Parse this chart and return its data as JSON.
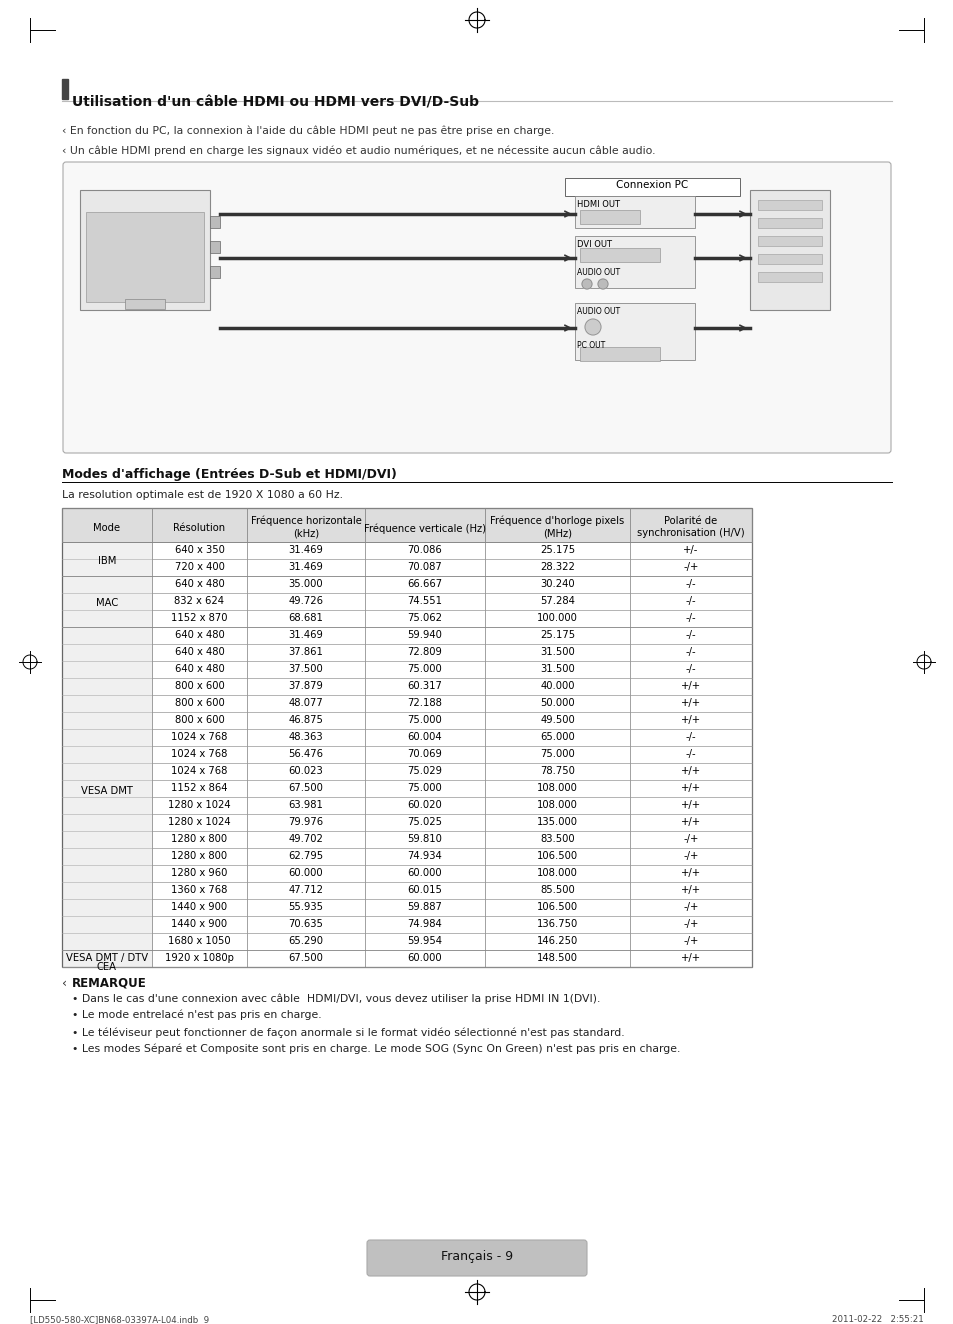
{
  "title": "Utilisation d'un câble HDMI ou HDMI vers DVI/D-Sub",
  "note1": "‹ En fonction du PC, la connexion à l'aide du câble HDMI peut ne pas être prise en charge.",
  "note2": "‹ Un câble HDMI prend en charge les signaux vidéo et audio numériques, et ne nécessite aucun câble audio.",
  "section_title": "Modes d'affichage (Entrées D-Sub et HDMI/DVI)",
  "resolution_note": "La resolution optimale est de 1920 X 1080 a 60 Hz.",
  "table_headers": [
    "Mode",
    "Résolution",
    "Fréquence horizontale\n(kHz)",
    "Fréquence verticale (Hz)",
    "Fréquence d'horloge pixels\n(MHz)",
    "Polarité de\nsynchronisation (H/V)"
  ],
  "table_data": [
    [
      "IBM",
      "640 x 350",
      "31.469",
      "70.086",
      "25.175",
      "+/-"
    ],
    [
      "IBM",
      "720 x 400",
      "31.469",
      "70.087",
      "28.322",
      "-/+"
    ],
    [
      "MAC",
      "640 x 480",
      "35.000",
      "66.667",
      "30.240",
      "-/-"
    ],
    [
      "MAC",
      "832 x 624",
      "49.726",
      "74.551",
      "57.284",
      "-/-"
    ],
    [
      "MAC",
      "1152 x 870",
      "68.681",
      "75.062",
      "100.000",
      "-/-"
    ],
    [
      "VESA DMT",
      "640 x 480",
      "31.469",
      "59.940",
      "25.175",
      "-/-"
    ],
    [
      "VESA DMT",
      "640 x 480",
      "37.861",
      "72.809",
      "31.500",
      "-/-"
    ],
    [
      "VESA DMT",
      "640 x 480",
      "37.500",
      "75.000",
      "31.500",
      "-/-"
    ],
    [
      "VESA DMT",
      "800 x 600",
      "37.879",
      "60.317",
      "40.000",
      "+/+"
    ],
    [
      "VESA DMT",
      "800 x 600",
      "48.077",
      "72.188",
      "50.000",
      "+/+"
    ],
    [
      "VESA DMT",
      "800 x 600",
      "46.875",
      "75.000",
      "49.500",
      "+/+"
    ],
    [
      "VESA DMT",
      "1024 x 768",
      "48.363",
      "60.004",
      "65.000",
      "-/-"
    ],
    [
      "VESA DMT",
      "1024 x 768",
      "56.476",
      "70.069",
      "75.000",
      "-/-"
    ],
    [
      "VESA DMT",
      "1024 x 768",
      "60.023",
      "75.029",
      "78.750",
      "+/+"
    ],
    [
      "VESA DMT",
      "1152 x 864",
      "67.500",
      "75.000",
      "108.000",
      "+/+"
    ],
    [
      "VESA DMT",
      "1280 x 1024",
      "63.981",
      "60.020",
      "108.000",
      "+/+"
    ],
    [
      "VESA DMT",
      "1280 x 1024",
      "79.976",
      "75.025",
      "135.000",
      "+/+"
    ],
    [
      "VESA DMT",
      "1280 x 800",
      "49.702",
      "59.810",
      "83.500",
      "-/+"
    ],
    [
      "VESA DMT",
      "1280 x 800",
      "62.795",
      "74.934",
      "106.500",
      "-/+"
    ],
    [
      "VESA DMT",
      "1280 x 960",
      "60.000",
      "60.000",
      "108.000",
      "+/+"
    ],
    [
      "VESA DMT",
      "1360 x 768",
      "47.712",
      "60.015",
      "85.500",
      "+/+"
    ],
    [
      "VESA DMT",
      "1440 x 900",
      "55.935",
      "59.887",
      "106.500",
      "-/+"
    ],
    [
      "VESA DMT",
      "1440 x 900",
      "70.635",
      "74.984",
      "136.750",
      "-/+"
    ],
    [
      "VESA DMT",
      "1680 x 1050",
      "65.290",
      "59.954",
      "146.250",
      "-/+"
    ],
    [
      "VESA DMT / DTV\nCEA",
      "1920 x 1080p",
      "67.500",
      "60.000",
      "148.500",
      "+/+"
    ]
  ],
  "remark_title": "REMARQUE",
  "remarks": [
    "Dans le cas d'une connexion avec câble  HDMI/DVI, vous devez utiliser la prise HDMI IN 1(DVI).",
    "Le mode entrelacé n'est pas pris en charge.",
    "Le téléviseur peut fonctionner de façon anormale si le format vidéo sélectionné n'est pas standard.",
    "Les modes Séparé et Composite sont pris en charge. Le mode SOG (Sync On Green) n'est pas pris en charge."
  ],
  "page_label": "Français - 9",
  "footer_left": "[LD550-580-XC]BN68-03397A-L04.indb  9",
  "footer_right": "2011-02-22   2:55:21",
  "bg_color": "#ffffff",
  "text_color": "#000000",
  "header_bg": "#e0e0e0",
  "box_border": "#bbbbbb",
  "title_bar_color": "#444444",
  "row_bg": "#ffffff"
}
